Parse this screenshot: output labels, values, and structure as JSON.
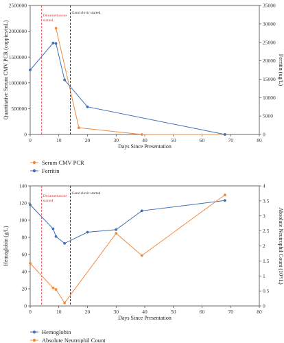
{
  "chart_data": [
    {
      "type": "line",
      "xlabel": "Days Since Presentation",
      "ylabel_left": "Quantitative Serum CMV PCR (coppies/mL)",
      "ylabel_right": "Ferritin (ug/L)",
      "xlim": [
        0,
        80
      ],
      "ylim_left": [
        0,
        2500000
      ],
      "ylim_right": [
        0,
        35000
      ],
      "x_ticks": [
        "0",
        "10",
        "20",
        "30",
        "40",
        "50",
        "60",
        "70",
        "80"
      ],
      "y_left_ticks": [
        "0",
        "500000",
        "1000000",
        "1500000",
        "2000000",
        "2500000"
      ],
      "y_right_ticks": [
        "0",
        "5000",
        "10000",
        "15000",
        "20000",
        "25000",
        "30000",
        "35000"
      ],
      "grid": false,
      "legend_position": "below",
      "series": [
        {
          "name": "Serum CMV PCR",
          "axis": "left",
          "color": "#F08A3C",
          "x": [
            9,
            17,
            39,
            68
          ],
          "y": [
            2060000,
            130000,
            0,
            0
          ]
        },
        {
          "name": "Ferritin",
          "axis": "right",
          "color": "#3F6FB5",
          "x": [
            0,
            8,
            9,
            12,
            20,
            68
          ],
          "y": [
            17500,
            24800,
            24700,
            14800,
            7500,
            0
          ]
        }
      ],
      "annotations": [
        {
          "text": "Dexamethasone",
          "x": 4,
          "color": "#E8393B"
        },
        {
          "text": "started",
          "x": 4,
          "color": "#E8393B"
        },
        {
          "text": "Ganciclovir started",
          "x": 14,
          "color": "#333333"
        }
      ]
    },
    {
      "type": "line",
      "xlabel": "Days Since Presentation",
      "ylabel_left": "Hemoglobin (g/L)",
      "ylabel_right": "Absolute Neutrophil Count (10⁹/L)",
      "xlim": [
        0,
        80
      ],
      "ylim_left": [
        0,
        140
      ],
      "ylim_right": [
        0,
        4
      ],
      "x_ticks": [
        "0",
        "10",
        "20",
        "30",
        "40",
        "50",
        "60",
        "70",
        "80"
      ],
      "y_left_ticks": [
        "0",
        "20",
        "40",
        "60",
        "80",
        "100",
        "120",
        "140"
      ],
      "y_right_ticks": [
        "0",
        "0.5",
        "1",
        "1.5",
        "2",
        "2.5",
        "3",
        "3.5",
        "4"
      ],
      "grid": false,
      "legend_position": "below",
      "series": [
        {
          "name": "Hemoglobin",
          "axis": "left",
          "color": "#3F6FB5",
          "x": [
            0,
            8,
            9,
            12,
            20,
            30,
            39,
            68
          ],
          "y": [
            118,
            90,
            81,
            73,
            86,
            89,
            111,
            123
          ]
        },
        {
          "name": "Absolute Neutrophil Count",
          "axis": "right",
          "color": "#F08A3C",
          "x": [
            0,
            8,
            9,
            12,
            30,
            39,
            68
          ],
          "y": [
            1.42,
            0.6,
            0.55,
            0.1,
            2.42,
            1.68,
            3.7
          ]
        }
      ],
      "annotations": [
        {
          "text": "Dexamethasone",
          "x": 4,
          "color": "#E8393B"
        },
        {
          "text": "started",
          "x": 4,
          "color": "#E8393B"
        },
        {
          "text": "Ganciclovir started",
          "x": 14,
          "color": "#333333"
        }
      ]
    }
  ]
}
